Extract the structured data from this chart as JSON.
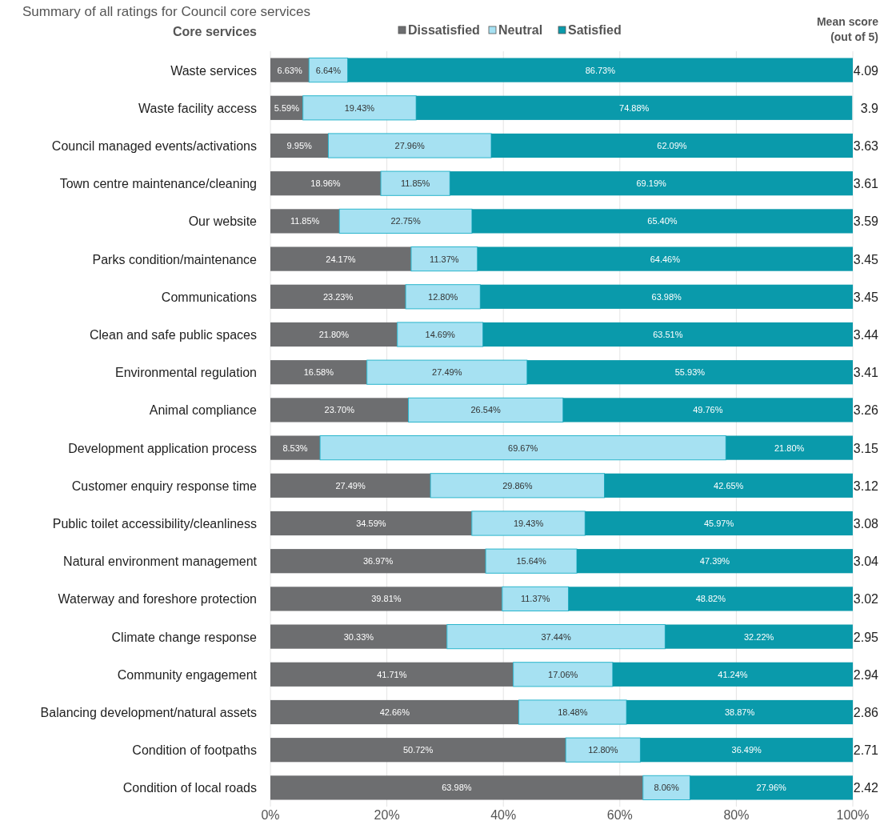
{
  "chart_data": {
    "type": "bar",
    "orientation": "horizontal",
    "stacked": true,
    "title": "Summary of all ratings for Council core services",
    "ylabel": "Core services",
    "categories": [
      "Waste services",
      "Waste facility access",
      "Council managed events/activations",
      "Town centre maintenance/cleaning",
      "Our website",
      "Parks condition/maintenance",
      "Communications",
      "Clean and safe public spaces",
      "Environmental regulation",
      "Animal compliance",
      "Development application process",
      "Customer enquiry response time",
      "Public toilet accessibility/cleanliness",
      "Natural environment management",
      "Waterway and foreshore protection",
      "Climate change response",
      "Community engagement ",
      "Balancing development/natural assets",
      "Condition of footpaths",
      "Condition of local roads"
    ],
    "series": [
      {
        "name": "Dissatisfied",
        "color": "#6d6e70",
        "values": [
          6.63,
          5.59,
          9.95,
          18.96,
          11.85,
          24.17,
          23.23,
          21.8,
          16.58,
          23.7,
          8.53,
          27.49,
          34.59,
          36.97,
          39.81,
          30.33,
          41.71,
          42.66,
          50.72,
          63.98
        ],
        "value_labels": [
          "6.63%",
          "5.59%",
          "9.95%",
          "18.96%",
          "11.85%",
          "24.17%",
          "23.23%",
          "21.80%",
          "16.58%",
          "23.70%",
          "8.53%",
          "27.49%",
          "34.59%",
          "36.97%",
          "39.81%",
          "30.33%",
          "41.71%",
          "42.66%",
          "50.72%",
          "63.98%"
        ]
      },
      {
        "name": "Neutral",
        "color": "#a6e1f2",
        "values": [
          6.64,
          19.43,
          27.96,
          11.85,
          22.75,
          11.37,
          12.8,
          14.69,
          27.49,
          26.54,
          69.67,
          29.86,
          19.43,
          15.64,
          11.37,
          37.44,
          17.06,
          18.48,
          12.8,
          8.06
        ],
        "value_labels": [
          "6.64%",
          "19.43%",
          "27.96%",
          "11.85%",
          "22.75%",
          "11.37%",
          "12.80%",
          "14.69%",
          "27.49%",
          "26.54%",
          "69.67%",
          "29.86%",
          "19.43%",
          "15.64%",
          "11.37%",
          "37.44%",
          "17.06%",
          "18.48%",
          "12.80%",
          "8.06%"
        ]
      },
      {
        "name": "Satisfied",
        "color": "#0a9aab",
        "values": [
          86.73,
          74.88,
          62.09,
          69.19,
          65.4,
          64.46,
          63.98,
          63.51,
          55.93,
          49.76,
          21.8,
          42.65,
          45.97,
          47.39,
          48.82,
          32.22,
          41.24,
          38.87,
          36.49,
          27.96
        ],
        "value_labels": [
          "86.73%",
          "74.88%",
          "62.09%",
          "69.19%",
          "65.40%",
          "64.46%",
          "63.98%",
          "63.51%",
          "55.93%",
          "49.76%",
          "21.80%",
          "42.65%",
          "45.97%",
          "47.39%",
          "48.82%",
          "32.22%",
          "41.24%",
          "38.87%",
          "36.49%",
          "27.96%"
        ]
      }
    ],
    "xlim": [
      0,
      100
    ],
    "xticks": [
      {
        "value": 0,
        "label": "0%"
      },
      {
        "value": 20,
        "label": "20%"
      },
      {
        "value": 40,
        "label": "40%"
      },
      {
        "value": 60,
        "label": "60%"
      },
      {
        "value": 80,
        "label": "80%"
      },
      {
        "value": 100,
        "label": "100%"
      }
    ],
    "grid": "x",
    "legend": "top",
    "annotations": [
      "Mean score (out of 5)",
      "4.09",
      "3.9",
      "3.63",
      "3.61",
      "3.59",
      "3.45",
      "3.45",
      "3.44",
      "3.41",
      "3.26",
      "3.15",
      "3.12",
      "3.08",
      "3.04",
      "3.02",
      "2.95",
      "2.94",
      "2.86",
      "2.71",
      "2.42"
    ]
  }
}
